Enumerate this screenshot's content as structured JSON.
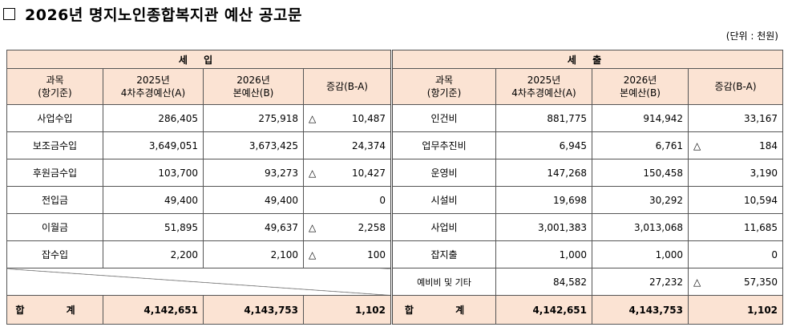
{
  "title": "2026년 명지노인종합복지관 예산 공고문",
  "unit": "(단위 : 천원)",
  "sections": {
    "income": "세 입",
    "expense": "세 출"
  },
  "headers": {
    "subject_line1": "과목",
    "subject_line2": "(항기준)",
    "prev_line1": "2025년",
    "prev_line2": "4차추경예산(A)",
    "curr_line1": "2026년",
    "curr_line2": "본예산(B)",
    "diff": "증감(B-A)"
  },
  "triangle": "△",
  "income_rows": [
    {
      "name": "사업수입",
      "prev": "286,405",
      "curr": "275,918",
      "neg": true,
      "diff": "10,487"
    },
    {
      "name": "보조금수입",
      "prev": "3,649,051",
      "curr": "3,673,425",
      "neg": false,
      "diff": "24,374"
    },
    {
      "name": "후원금수입",
      "prev": "103,700",
      "curr": "93,273",
      "neg": true,
      "diff": "10,427"
    },
    {
      "name": "전입금",
      "prev": "49,400",
      "curr": "49,400",
      "neg": false,
      "diff": "0"
    },
    {
      "name": "이월금",
      "prev": "51,895",
      "curr": "49,637",
      "neg": true,
      "diff": "2,258"
    },
    {
      "name": "잡수입",
      "prev": "2,200",
      "curr": "2,100",
      "neg": true,
      "diff": "100"
    }
  ],
  "expense_rows": [
    {
      "name": "인건비",
      "prev": "881,775",
      "curr": "914,942",
      "neg": false,
      "diff": "33,167"
    },
    {
      "name": "업무추진비",
      "prev": "6,945",
      "curr": "6,761",
      "neg": true,
      "diff": "184"
    },
    {
      "name": "운영비",
      "prev": "147,268",
      "curr": "150,458",
      "neg": false,
      "diff": "3,190"
    },
    {
      "name": "시설비",
      "prev": "19,698",
      "curr": "30,292",
      "neg": false,
      "diff": "10,594"
    },
    {
      "name": "사업비",
      "prev": "3,001,383",
      "curr": "3,013,068",
      "neg": false,
      "diff": "11,685"
    },
    {
      "name": "잡지출",
      "prev": "1,000",
      "curr": "1,000",
      "neg": false,
      "diff": "0"
    },
    {
      "name": "예비비 및 기타",
      "prev": "84,582",
      "curr": "27,232",
      "neg": true,
      "diff": "57,350"
    }
  ],
  "totals": {
    "label": "합 계",
    "income": {
      "prev": "4,142,651",
      "curr": "4,143,753",
      "diff": "1,102"
    },
    "expense": {
      "prev": "4,142,651",
      "curr": "4,143,753",
      "diff": "1,102"
    }
  }
}
